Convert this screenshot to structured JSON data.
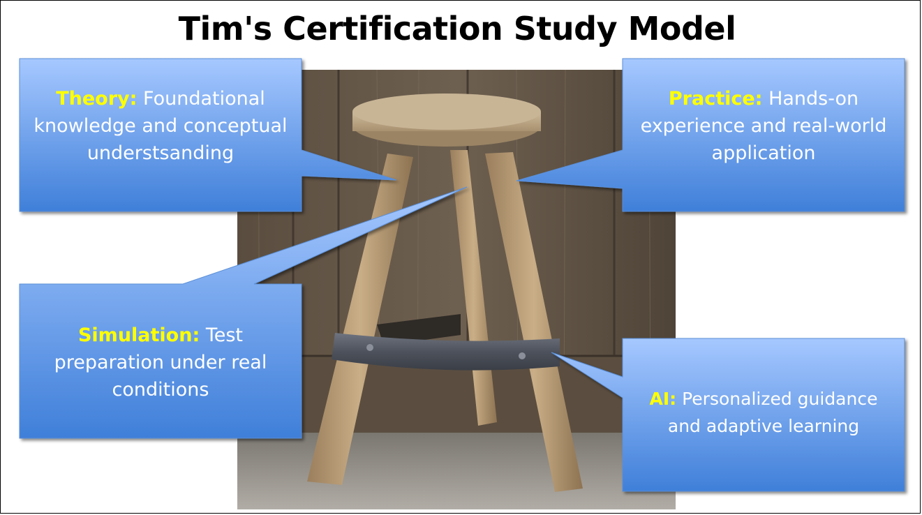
{
  "title": "Tim's Certification Study Model",
  "callouts": {
    "theory": {
      "keyword": "Theory:",
      "text": " Foundational knowledge and conceptual understsanding"
    },
    "practice": {
      "keyword": "Practice:",
      "text": " Hands-on experience and real-world application"
    },
    "simulation": {
      "keyword": "Simulation:",
      "text": " Test preparation under real conditions"
    },
    "ai": {
      "keyword": "AI:",
      "text": " Personalized guidance and adaptive learning"
    }
  },
  "colors": {
    "callout_top": "#a6c8ff",
    "callout_bottom": "#3f7fd9",
    "keyword": "#ffff00",
    "body_text": "#ffffff"
  },
  "image": {
    "subject": "three-legged wooden stool with metal band"
  }
}
